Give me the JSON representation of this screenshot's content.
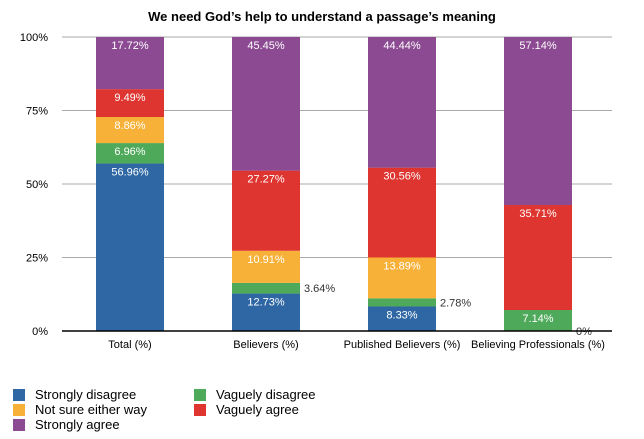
{
  "chart_data": {
    "type": "bar",
    "stacked": "percent",
    "title": "We need God’s help to understand a passage’s meaning",
    "categories": [
      "Total (%)",
      "Believers (%)",
      "Published Believers (%)",
      "Believing Professionals (%)"
    ],
    "ylim": [
      0,
      100
    ],
    "yticks": [
      "0%",
      "25%",
      "50%",
      "75%",
      "100%"
    ],
    "grid": true,
    "legend_position": "bottom-left",
    "series": [
      {
        "name": "Strongly disagree",
        "color": "#2e67a3",
        "values": [
          56.96,
          12.73,
          8.33,
          0
        ],
        "labels": [
          "56.96%",
          "12.73%",
          "8.33%",
          "0%"
        ]
      },
      {
        "name": "Vaguely disagree",
        "color": "#4fa95a",
        "values": [
          6.96,
          3.64,
          2.78,
          7.14
        ],
        "labels": [
          "6.96%",
          "3.64%",
          "2.78%",
          "7.14%"
        ]
      },
      {
        "name": "Not sure either way",
        "color": "#f7b138",
        "values": [
          8.86,
          10.91,
          13.89,
          0
        ],
        "labels": [
          "8.86%",
          "10.91%",
          "13.89%",
          ""
        ]
      },
      {
        "name": "Vaguely agree",
        "color": "#de3530",
        "values": [
          9.49,
          27.27,
          30.56,
          35.71
        ],
        "labels": [
          "9.49%",
          "27.27%",
          "30.56%",
          "35.71%"
        ]
      },
      {
        "name": "Strongly agree",
        "color": "#8b4a92",
        "values": [
          17.72,
          45.45,
          44.44,
          57.14
        ],
        "labels": [
          "17.72%",
          "45.45%",
          "44.44%",
          "57.14%"
        ]
      }
    ]
  }
}
